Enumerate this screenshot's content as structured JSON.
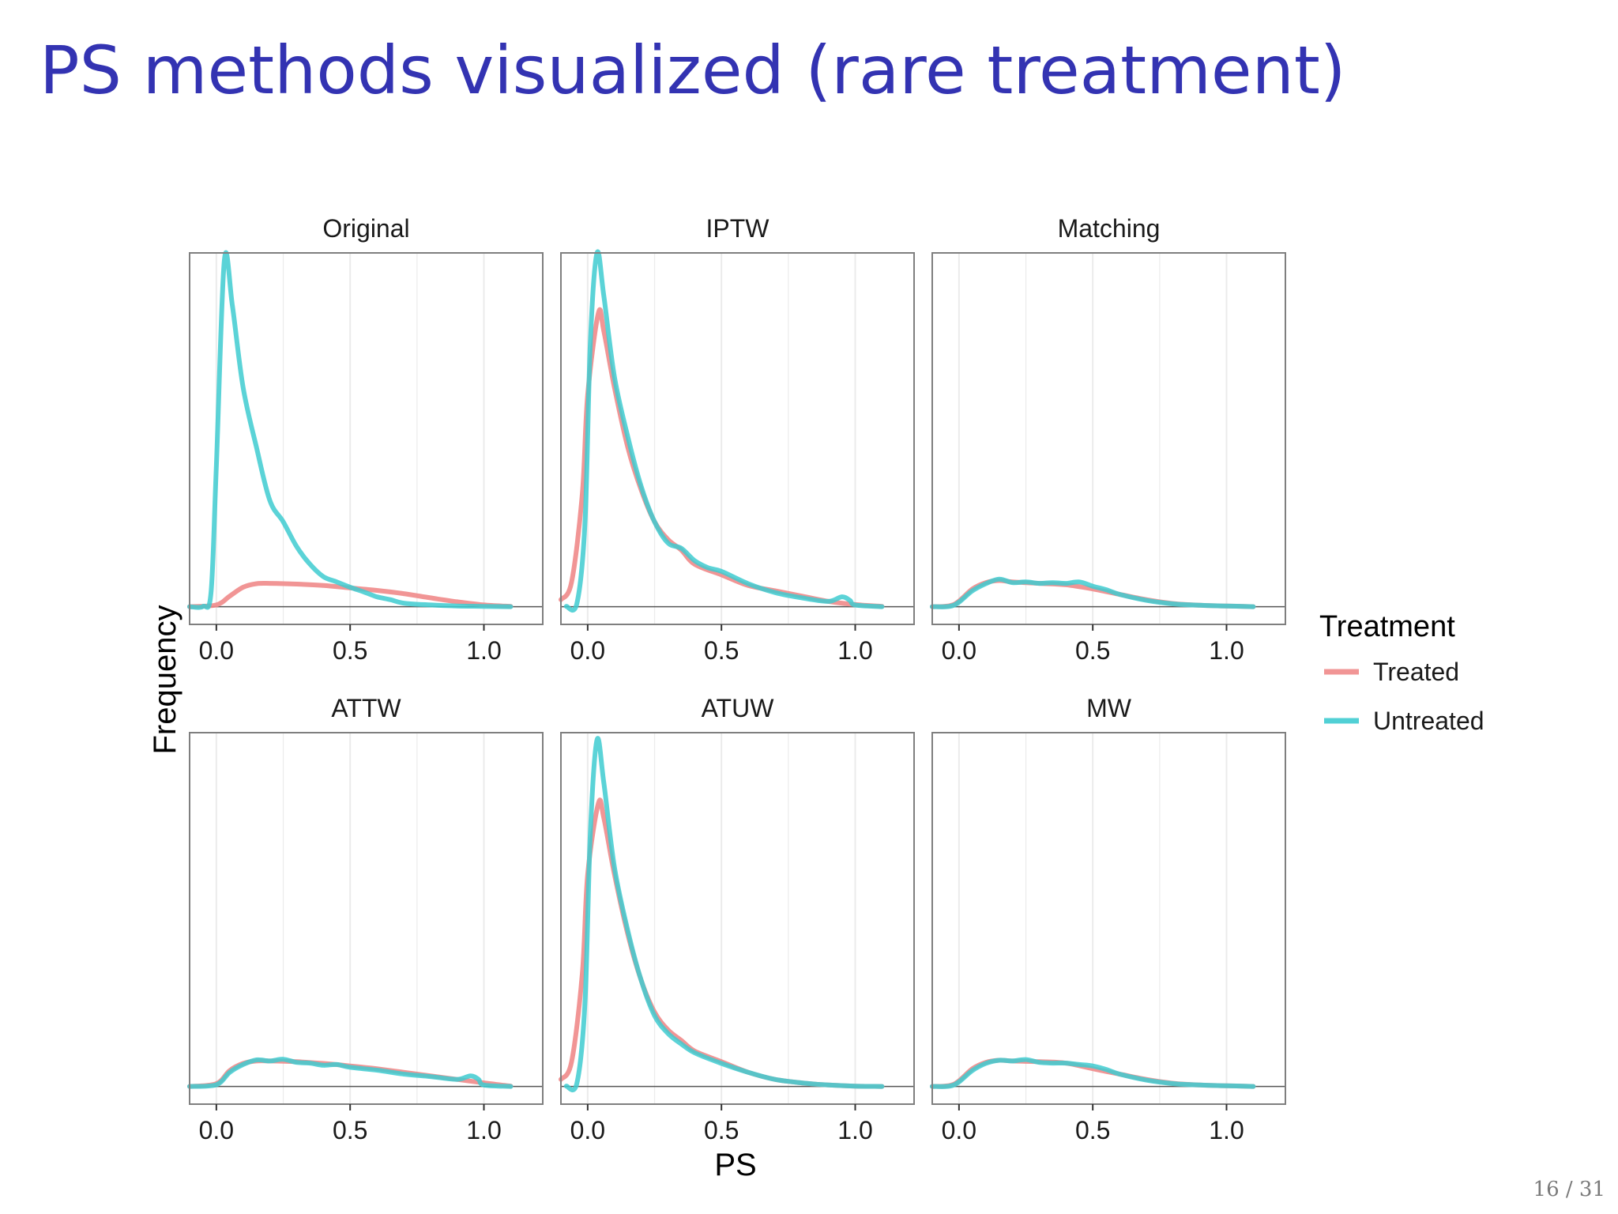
{
  "slide": {
    "title": "PS methods visualized (rare treatment)",
    "page_number": "16 / 31"
  },
  "colors": {
    "treated": "#f08a8a",
    "untreated": "#3ecbd0",
    "title": "#3333b2",
    "panel_border": "#7f7f7f",
    "grid": "#ebebeb"
  },
  "chart_data": {
    "type": "line",
    "title": "",
    "xlabel": "PS",
    "ylabel": "Frequency",
    "xlim": [
      -0.1,
      1.22
    ],
    "ylim": [
      -0.05,
      1.0
    ],
    "x_ticks": [
      0.0,
      0.5,
      1.0
    ],
    "x_tick_labels": [
      "0.0",
      "0.5",
      "1.0"
    ],
    "grid": true,
    "legend": {
      "title": "Treatment",
      "position": "right",
      "entries": [
        "Treated",
        "Untreated"
      ]
    },
    "series_names": [
      "Treated",
      "Untreated"
    ],
    "panels": [
      {
        "name": "Original",
        "treated": [
          [
            -0.1,
            0
          ],
          [
            0.0,
            0.005
          ],
          [
            0.05,
            0.03
          ],
          [
            0.1,
            0.055
          ],
          [
            0.15,
            0.065
          ],
          [
            0.2,
            0.066
          ],
          [
            0.3,
            0.064
          ],
          [
            0.4,
            0.06
          ],
          [
            0.5,
            0.053
          ],
          [
            0.6,
            0.046
          ],
          [
            0.7,
            0.037
          ],
          [
            0.8,
            0.025
          ],
          [
            0.9,
            0.014
          ],
          [
            1.0,
            0.005
          ],
          [
            1.1,
            0.001
          ]
        ],
        "untreated": [
          [
            -0.1,
            0
          ],
          [
            -0.05,
            0.001
          ],
          [
            -0.02,
            0.04
          ],
          [
            0.0,
            0.4
          ],
          [
            0.03,
            0.98
          ],
          [
            0.06,
            0.85
          ],
          [
            0.1,
            0.62
          ],
          [
            0.15,
            0.45
          ],
          [
            0.2,
            0.3
          ],
          [
            0.25,
            0.24
          ],
          [
            0.3,
            0.17
          ],
          [
            0.35,
            0.12
          ],
          [
            0.4,
            0.085
          ],
          [
            0.45,
            0.07
          ],
          [
            0.5,
            0.055
          ],
          [
            0.55,
            0.042
          ],
          [
            0.6,
            0.028
          ],
          [
            0.65,
            0.02
          ],
          [
            0.7,
            0.01
          ],
          [
            0.8,
            0.005
          ],
          [
            0.9,
            0.002
          ],
          [
            1.0,
            0.001
          ],
          [
            1.1,
            0
          ]
        ]
      },
      {
        "name": "IPTW",
        "treated": [
          [
            -0.1,
            0.02
          ],
          [
            -0.06,
            0.07
          ],
          [
            -0.02,
            0.32
          ],
          [
            0.0,
            0.6
          ],
          [
            0.04,
            0.83
          ],
          [
            0.06,
            0.78
          ],
          [
            0.1,
            0.62
          ],
          [
            0.15,
            0.45
          ],
          [
            0.2,
            0.33
          ],
          [
            0.25,
            0.24
          ],
          [
            0.3,
            0.19
          ],
          [
            0.35,
            0.16
          ],
          [
            0.4,
            0.12
          ],
          [
            0.5,
            0.09
          ],
          [
            0.6,
            0.06
          ],
          [
            0.7,
            0.045
          ],
          [
            0.8,
            0.03
          ],
          [
            0.9,
            0.015
          ],
          [
            1.0,
            0.006
          ],
          [
            1.1,
            0.001
          ]
        ],
        "untreated": [
          [
            -0.08,
            0.001
          ],
          [
            -0.04,
            0.01
          ],
          [
            -0.01,
            0.24
          ],
          [
            0.01,
            0.75
          ],
          [
            0.035,
            1.0
          ],
          [
            0.06,
            0.88
          ],
          [
            0.1,
            0.65
          ],
          [
            0.15,
            0.48
          ],
          [
            0.2,
            0.34
          ],
          [
            0.25,
            0.24
          ],
          [
            0.3,
            0.18
          ],
          [
            0.35,
            0.165
          ],
          [
            0.4,
            0.13
          ],
          [
            0.45,
            0.11
          ],
          [
            0.5,
            0.1
          ],
          [
            0.6,
            0.065
          ],
          [
            0.7,
            0.04
          ],
          [
            0.8,
            0.025
          ],
          [
            0.9,
            0.015
          ],
          [
            0.95,
            0.028
          ],
          [
            0.98,
            0.018
          ],
          [
            1.0,
            0.005
          ],
          [
            1.1,
            0
          ]
        ]
      },
      {
        "name": "Matching",
        "treated": [
          [
            -0.1,
            0
          ],
          [
            -0.02,
            0.006
          ],
          [
            0.05,
            0.05
          ],
          [
            0.1,
            0.068
          ],
          [
            0.15,
            0.074
          ],
          [
            0.2,
            0.07
          ],
          [
            0.3,
            0.066
          ],
          [
            0.4,
            0.062
          ],
          [
            0.5,
            0.05
          ],
          [
            0.6,
            0.035
          ],
          [
            0.7,
            0.02
          ],
          [
            0.8,
            0.009
          ],
          [
            0.9,
            0.004
          ],
          [
            1.0,
            0.002
          ],
          [
            1.1,
            0
          ]
        ],
        "untreated": [
          [
            -0.1,
            0
          ],
          [
            -0.02,
            0.004
          ],
          [
            0.05,
            0.045
          ],
          [
            0.1,
            0.065
          ],
          [
            0.15,
            0.078
          ],
          [
            0.2,
            0.068
          ],
          [
            0.25,
            0.07
          ],
          [
            0.3,
            0.066
          ],
          [
            0.35,
            0.068
          ],
          [
            0.4,
            0.066
          ],
          [
            0.45,
            0.07
          ],
          [
            0.5,
            0.058
          ],
          [
            0.55,
            0.048
          ],
          [
            0.6,
            0.035
          ],
          [
            0.7,
            0.018
          ],
          [
            0.8,
            0.008
          ],
          [
            0.9,
            0.004
          ],
          [
            1.0,
            0.002
          ],
          [
            1.1,
            0
          ]
        ]
      },
      {
        "name": "ATTW",
        "treated": [
          [
            -0.1,
            0
          ],
          [
            0.0,
            0.008
          ],
          [
            0.05,
            0.045
          ],
          [
            0.1,
            0.065
          ],
          [
            0.15,
            0.072
          ],
          [
            0.2,
            0.072
          ],
          [
            0.3,
            0.07
          ],
          [
            0.4,
            0.065
          ],
          [
            0.5,
            0.058
          ],
          [
            0.6,
            0.05
          ],
          [
            0.7,
            0.04
          ],
          [
            0.8,
            0.03
          ],
          [
            0.9,
            0.02
          ],
          [
            1.0,
            0.01
          ],
          [
            1.1,
            0.001
          ]
        ],
        "untreated": [
          [
            -0.1,
            0
          ],
          [
            0.0,
            0.005
          ],
          [
            0.05,
            0.04
          ],
          [
            0.1,
            0.062
          ],
          [
            0.15,
            0.075
          ],
          [
            0.2,
            0.072
          ],
          [
            0.25,
            0.077
          ],
          [
            0.3,
            0.068
          ],
          [
            0.35,
            0.066
          ],
          [
            0.4,
            0.06
          ],
          [
            0.45,
            0.062
          ],
          [
            0.5,
            0.054
          ],
          [
            0.6,
            0.046
          ],
          [
            0.7,
            0.035
          ],
          [
            0.8,
            0.028
          ],
          [
            0.9,
            0.02
          ],
          [
            0.95,
            0.03
          ],
          [
            0.98,
            0.02
          ],
          [
            1.0,
            0.004
          ],
          [
            1.1,
            0
          ]
        ]
      },
      {
        "name": "ATUW",
        "treated": [
          [
            -0.1,
            0.02
          ],
          [
            -0.06,
            0.07
          ],
          [
            -0.02,
            0.32
          ],
          [
            0.0,
            0.6
          ],
          [
            0.04,
            0.8
          ],
          [
            0.06,
            0.76
          ],
          [
            0.1,
            0.6
          ],
          [
            0.15,
            0.43
          ],
          [
            0.2,
            0.3
          ],
          [
            0.25,
            0.21
          ],
          [
            0.3,
            0.16
          ],
          [
            0.35,
            0.13
          ],
          [
            0.4,
            0.1
          ],
          [
            0.5,
            0.07
          ],
          [
            0.6,
            0.04
          ],
          [
            0.7,
            0.02
          ],
          [
            0.8,
            0.01
          ],
          [
            0.9,
            0.004
          ],
          [
            1.0,
            0.001
          ],
          [
            1.1,
            0
          ]
        ],
        "untreated": [
          [
            -0.08,
            0.001
          ],
          [
            -0.04,
            0.01
          ],
          [
            -0.01,
            0.24
          ],
          [
            0.01,
            0.72
          ],
          [
            0.035,
            0.98
          ],
          [
            0.06,
            0.86
          ],
          [
            0.1,
            0.62
          ],
          [
            0.15,
            0.44
          ],
          [
            0.2,
            0.3
          ],
          [
            0.25,
            0.2
          ],
          [
            0.3,
            0.15
          ],
          [
            0.35,
            0.12
          ],
          [
            0.4,
            0.095
          ],
          [
            0.5,
            0.065
          ],
          [
            0.6,
            0.04
          ],
          [
            0.7,
            0.02
          ],
          [
            0.8,
            0.01
          ],
          [
            0.9,
            0.004
          ],
          [
            1.0,
            0.001
          ],
          [
            1.1,
            0
          ]
        ]
      },
      {
        "name": "MW",
        "treated": [
          [
            -0.1,
            0
          ],
          [
            -0.02,
            0.006
          ],
          [
            0.05,
            0.05
          ],
          [
            0.1,
            0.068
          ],
          [
            0.15,
            0.074
          ],
          [
            0.2,
            0.072
          ],
          [
            0.3,
            0.07
          ],
          [
            0.4,
            0.066
          ],
          [
            0.5,
            0.05
          ],
          [
            0.6,
            0.035
          ],
          [
            0.7,
            0.02
          ],
          [
            0.8,
            0.009
          ],
          [
            0.9,
            0.004
          ],
          [
            1.0,
            0.002
          ],
          [
            1.1,
            0
          ]
        ],
        "untreated": [
          [
            -0.1,
            0
          ],
          [
            -0.02,
            0.004
          ],
          [
            0.05,
            0.045
          ],
          [
            0.1,
            0.065
          ],
          [
            0.15,
            0.074
          ],
          [
            0.2,
            0.072
          ],
          [
            0.25,
            0.076
          ],
          [
            0.3,
            0.068
          ],
          [
            0.35,
            0.066
          ],
          [
            0.4,
            0.066
          ],
          [
            0.45,
            0.062
          ],
          [
            0.5,
            0.058
          ],
          [
            0.55,
            0.048
          ],
          [
            0.6,
            0.035
          ],
          [
            0.7,
            0.018
          ],
          [
            0.8,
            0.008
          ],
          [
            0.9,
            0.004
          ],
          [
            1.0,
            0.002
          ],
          [
            1.1,
            0
          ]
        ]
      }
    ]
  }
}
